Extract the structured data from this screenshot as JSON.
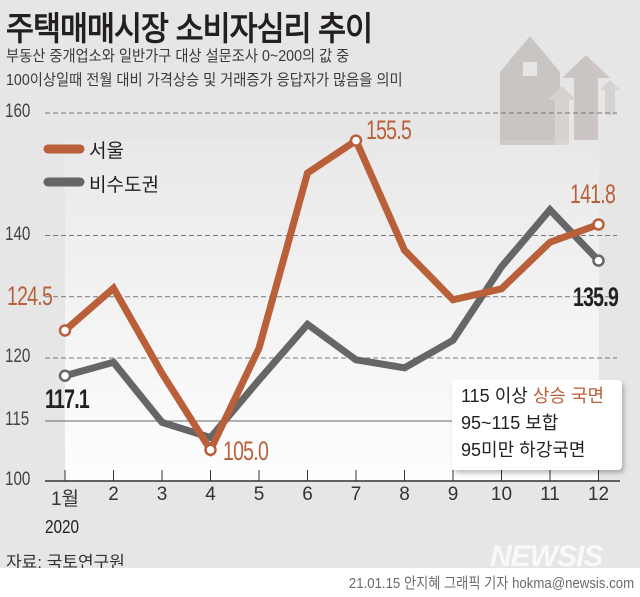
{
  "title": "주택매매시장 소비자심리 추이",
  "subtitle_lines": [
    "부동산 중개업소와 일반가구 대상 설문조사 0~200의 값 중",
    "100이상일때 전월 대비 가격상승 및 거래증가 응답자가 많음을 의미"
  ],
  "chart_data": {
    "type": "line",
    "categories": [
      "1월",
      "2",
      "3",
      "4",
      "5",
      "6",
      "7",
      "8",
      "9",
      "10",
      "11",
      "12"
    ],
    "x_sublabel": "2020",
    "series": [
      {
        "name": "서울",
        "color": "#b9603a",
        "values": [
          124.5,
          131.4,
          117.5,
          105.0,
          121.6,
          150.2,
          155.5,
          137.6,
          129.5,
          131.3,
          138.9,
          141.8
        ]
      },
      {
        "name": "비수도권",
        "color": "#666666",
        "values": [
          117.1,
          119.3,
          109.5,
          107.0,
          116.4,
          125.5,
          119.7,
          118.4,
          122.9,
          134.9,
          144.2,
          135.9
        ]
      }
    ],
    "y_ticks": [
      "160",
      "140",
      "120",
      "115",
      "100"
    ],
    "ylim": [
      100,
      160
    ],
    "grid": true,
    "legend_placement": "top-left",
    "data_labels": {
      "seoul_first": "124.5",
      "seoul_min": "105.0",
      "seoul_max": "155.5",
      "seoul_last": "141.8",
      "nonc_first": "117.1",
      "nonc_last": "135.9"
    }
  },
  "legend_note": {
    "line1_prefix": "115 이상 ",
    "line1_highlight": "상승 국면",
    "line2": "95~115 보합",
    "line3": "95미만 하강국면"
  },
  "source": "자료: 국토연구원",
  "watermark": "NEWSIS",
  "credit": "21.01.15 안지혜 그래픽 기자 hokma@newsis.com"
}
